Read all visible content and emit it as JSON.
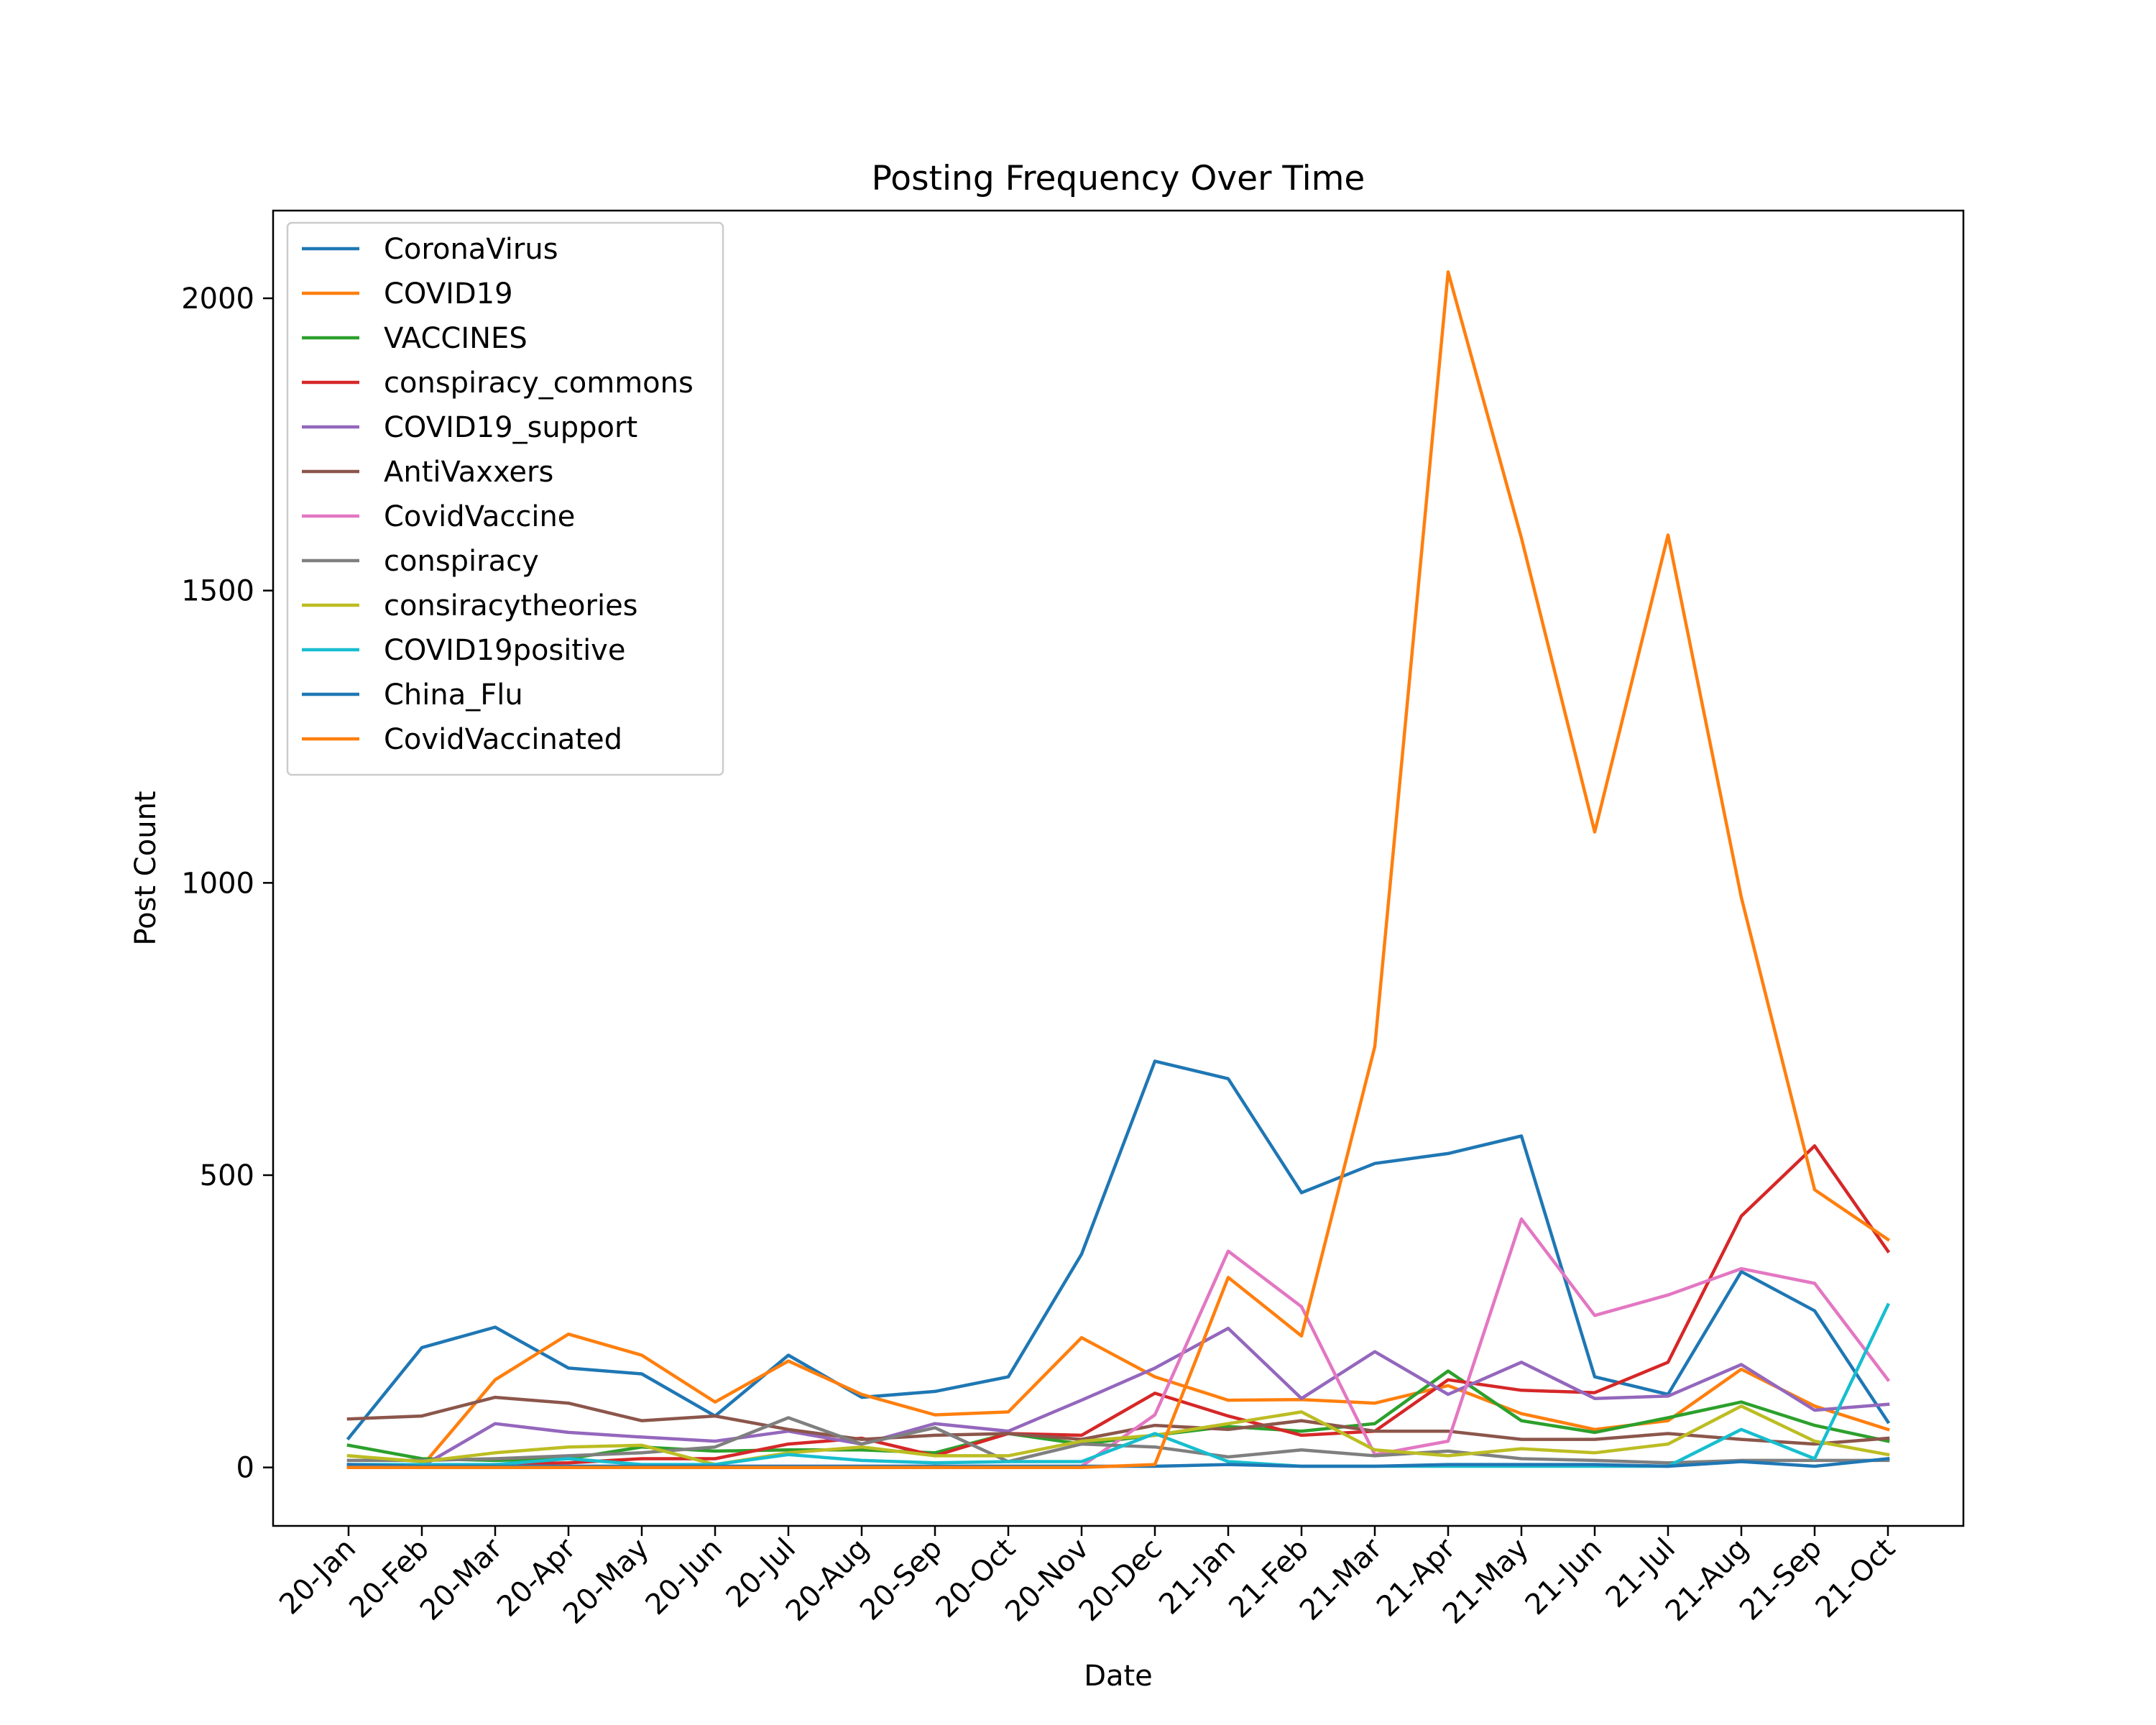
{
  "chart_data": {
    "type": "line",
    "title": "Posting Frequency Over Time",
    "xlabel": "Date",
    "ylabel": "Post Count",
    "ylim": [
      -100,
      2150
    ],
    "yticks": [
      0,
      500,
      1000,
      1500,
      2000
    ],
    "grid": false,
    "legend_position": "upper-left",
    "categories": [
      "20-Jan",
      "20-Feb",
      "20-Mar",
      "20-Apr",
      "20-May",
      "20-Jun",
      "20-Jul",
      "20-Aug",
      "20-Sep",
      "20-Oct",
      "20-Nov",
      "20-Dec",
      "21-Jan",
      "21-Feb",
      "21-Mar",
      "21-Apr",
      "21-May",
      "21-Jun",
      "21-Jul",
      "21-Aug",
      "21-Sep",
      "21-Oct"
    ],
    "series": [
      {
        "name": "CoronaVirus",
        "color": "#1f77b4",
        "values": [
          50,
          205,
          240,
          170,
          160,
          88,
          192,
          120,
          130,
          155,
          365,
          695,
          665,
          470,
          520,
          537,
          567,
          155,
          125,
          335,
          268,
          78
        ]
      },
      {
        "name": "COVID19",
        "color": "#ff7f0e",
        "values": [
          2,
          2,
          150,
          228,
          192,
          112,
          182,
          125,
          90,
          95,
          222,
          155,
          115,
          116,
          110,
          140,
          92,
          65,
          80,
          168,
          105,
          65
        ]
      },
      {
        "name": "VACCINES",
        "color": "#2ca02c",
        "values": [
          38,
          15,
          12,
          15,
          35,
          28,
          30,
          30,
          25,
          58,
          40,
          55,
          70,
          62,
          75,
          165,
          80,
          60,
          85,
          112,
          72,
          45
        ]
      },
      {
        "name": "conspiracy_commons",
        "color": "#d62728",
        "values": [
          5,
          3,
          5,
          8,
          15,
          15,
          40,
          50,
          20,
          58,
          55,
          127,
          88,
          55,
          62,
          150,
          132,
          128,
          180,
          430,
          550,
          370
        ]
      },
      {
        "name": "COVID19_support",
        "color": "#9467bd",
        "values": [
          2,
          2,
          75,
          60,
          52,
          45,
          62,
          40,
          75,
          62,
          115,
          170,
          238,
          118,
          198,
          125,
          180,
          118,
          122,
          176,
          98,
          108
        ]
      },
      {
        "name": "AntiVaxxers",
        "color": "#8c564b",
        "values": [
          83,
          88,
          120,
          110,
          80,
          88,
          65,
          48,
          55,
          58,
          48,
          72,
          65,
          80,
          62,
          62,
          48,
          48,
          58,
          48,
          40,
          50
        ]
      },
      {
        "name": "CovidVaccine",
        "color": "#e377c2",
        "values": [
          2,
          2,
          2,
          2,
          2,
          2,
          2,
          2,
          2,
          2,
          2,
          90,
          370,
          275,
          22,
          45,
          425,
          260,
          295,
          340,
          315,
          150
        ]
      },
      {
        "name": "conspiracy",
        "color": "#7f7f7f",
        "values": [
          12,
          12,
          15,
          20,
          25,
          35,
          85,
          40,
          68,
          10,
          40,
          35,
          18,
          30,
          20,
          28,
          15,
          12,
          8,
          12,
          12,
          12
        ]
      },
      {
        "name": "consiracytheories",
        "color": "#bcbd22",
        "values": [
          20,
          10,
          25,
          35,
          38,
          5,
          25,
          35,
          20,
          20,
          45,
          55,
          75,
          95,
          30,
          20,
          32,
          25,
          40,
          105,
          45,
          22
        ]
      },
      {
        "name": "COVID19positive",
        "color": "#17becf",
        "values": [
          5,
          5,
          5,
          15,
          5,
          5,
          22,
          12,
          8,
          10,
          10,
          58,
          10,
          2,
          2,
          2,
          2,
          2,
          2,
          65,
          15,
          278
        ]
      },
      {
        "name": "China_Flu",
        "color": "#1f77b4",
        "values": [
          5,
          2,
          2,
          2,
          2,
          2,
          2,
          2,
          2,
          2,
          2,
          2,
          5,
          2,
          2,
          5,
          5,
          5,
          2,
          10,
          2,
          15
        ]
      },
      {
        "name": "CovidVaccinated",
        "color": "#ff7f0e",
        "values": [
          0,
          0,
          0,
          0,
          0,
          0,
          0,
          0,
          0,
          0,
          0,
          5,
          325,
          225,
          720,
          2045,
          1590,
          1087,
          1595,
          975,
          475,
          390
        ]
      }
    ]
  }
}
